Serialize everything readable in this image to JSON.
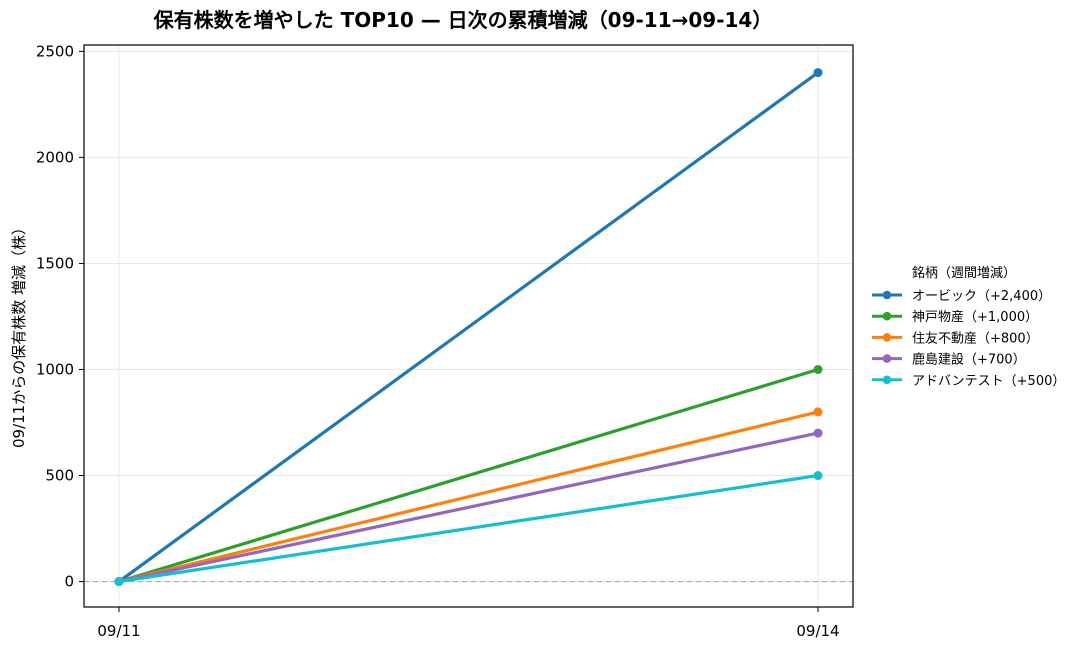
{
  "chart_data": {
    "type": "line",
    "title": "保有株数を増やした TOP10 — 日次の累積増減（09-11→09-14）",
    "xlabel": "",
    "ylabel": "09/11からの保有株数 増減（株）",
    "categories": [
      "09/11",
      "09/14"
    ],
    "ylim": [
      -120,
      2530
    ],
    "yticks": [
      0,
      500,
      1000,
      1500,
      2000,
      2500
    ],
    "grid": true,
    "zero_line": true,
    "legend_placement": "right",
    "legend_title": "銘柄（週間増減）",
    "series": [
      {
        "name": "オービック（+2,400）",
        "values": [
          0,
          2400
        ],
        "color": "#1f77b4"
      },
      {
        "name": "神戸物産（+1,000）",
        "values": [
          0,
          1000
        ],
        "color": "#2ca02c"
      },
      {
        "name": "住友不動産（+800）",
        "values": [
          0,
          800
        ],
        "color": "#ff7f0e"
      },
      {
        "name": "鹿島建設（+700）",
        "values": [
          0,
          700
        ],
        "color": "#9467bd"
      },
      {
        "name": "アドバンテスト（+500）",
        "values": [
          0,
          500
        ],
        "color": "#17becf"
      }
    ]
  }
}
